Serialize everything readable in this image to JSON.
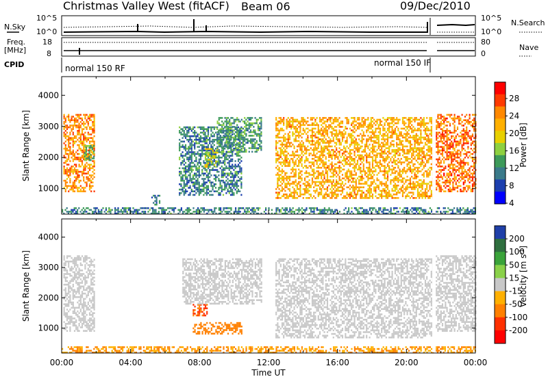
{
  "header": {
    "title": "Christmas Valley West (fitACF)",
    "beam": "Beam 06",
    "date": "09/Dec/2010"
  },
  "top_panels": {
    "nsky_label": "N.Sky",
    "nsearch_label": "N.Search",
    "nsky_top_tick": "10^5",
    "nsky_bottom_tick": "10^0",
    "freq_label_line1": "Freq.",
    "freq_label_line2": "[MHz]",
    "freq_ticks_left": [
      "18",
      "8"
    ],
    "nave_ticks_right": [
      "80",
      "0"
    ],
    "nave_label": "Nave",
    "cpid_label": "CPID",
    "cpid_left": "normal 150 RF",
    "cpid_right": "normal 150 IF"
  },
  "power_colorbar": {
    "title": "Power [dB]",
    "ticks": [
      "28",
      "24",
      "20",
      "16",
      "12",
      "8",
      "4"
    ],
    "colors": [
      "#ff0000",
      "#ff3a00",
      "#ff8800",
      "#ffb000",
      "#e8d000",
      "#8ed040",
      "#3d9a5a",
      "#3a7a8a",
      "#1c3fae",
      "#0000ff"
    ]
  },
  "velocity_colorbar": {
    "title": "Velocity [m s",
    "title_sup": "-1",
    "title_close": "]",
    "ticks": [
      "200",
      "100",
      "50",
      "15",
      "-15",
      "-50",
      "-100",
      "-200"
    ],
    "colors": [
      "#1f3fa8",
      "#2f6f3f",
      "#3aa33a",
      "#8ad14a",
      "#c8c8c8",
      "#ffb000",
      "#ff8000",
      "#ff3000",
      "#ff0000"
    ]
  },
  "chart_data": [
    {
      "type": "heatmap",
      "name": "power",
      "ylabel": "Slant Range [km]",
      "yticks": [
        1000,
        2000,
        3000,
        4000
      ],
      "ylim": [
        180,
        4600
      ],
      "xlim_hours": [
        0,
        24
      ],
      "colorbar": "power_colorbar",
      "regions": [
        {
          "t0": 0.1,
          "t1": 1.9,
          "r0": 900,
          "r1": 3400,
          "value": 24
        },
        {
          "t0": 1.3,
          "t1": 1.9,
          "r0": 1900,
          "r1": 2400,
          "value": 12
        },
        {
          "t0": 5.2,
          "t1": 5.7,
          "r0": 500,
          "r1": 800,
          "value": 8
        },
        {
          "t0": 6.8,
          "t1": 10.4,
          "r0": 800,
          "r1": 3000,
          "value": 8
        },
        {
          "t0": 8.3,
          "t1": 9.0,
          "r0": 1700,
          "r1": 2300,
          "value": 16
        },
        {
          "t0": 9.0,
          "t1": 11.6,
          "r0": 2200,
          "r1": 3300,
          "value": 10
        },
        {
          "t0": 12.4,
          "t1": 21.5,
          "r0": 700,
          "r1": 3300,
          "value": 22
        },
        {
          "t0": 21.7,
          "t1": 24.0,
          "r0": 900,
          "r1": 3400,
          "value": 26
        },
        {
          "t0": 0.0,
          "t1": 24.0,
          "r0": 180,
          "r1": 400,
          "value": 8
        }
      ]
    },
    {
      "type": "heatmap",
      "name": "velocity",
      "ylabel": "Slant Range [km]",
      "xlabel": "Time UT",
      "yticks": [
        1000,
        2000,
        3000,
        4000
      ],
      "ylim": [
        180,
        4600
      ],
      "xticks": [
        "00:00",
        "04:00",
        "08:00",
        "12:00",
        "16:00",
        "20:00",
        "00:00"
      ],
      "xlim_hours": [
        0,
        24
      ],
      "colorbar": "velocity_colorbar",
      "regions": [
        {
          "t0": 0.1,
          "t1": 1.9,
          "r0": 900,
          "r1": 3400,
          "value": 0
        },
        {
          "t0": 7.6,
          "t1": 8.4,
          "r0": 1400,
          "r1": 1800,
          "value": -60
        },
        {
          "t0": 7.6,
          "t1": 10.4,
          "r0": 800,
          "r1": 1200,
          "value": -40
        },
        {
          "t0": 7.0,
          "t1": 11.6,
          "r0": 1800,
          "r1": 3300,
          "value": 0
        },
        {
          "t0": 12.4,
          "t1": 21.5,
          "r0": 700,
          "r1": 3300,
          "value": 0
        },
        {
          "t0": 21.7,
          "t1": 24.0,
          "r0": 900,
          "r1": 3400,
          "value": 0
        },
        {
          "t0": 0.0,
          "t1": 24.0,
          "r0": 180,
          "r1": 400,
          "value": -30
        }
      ]
    }
  ]
}
